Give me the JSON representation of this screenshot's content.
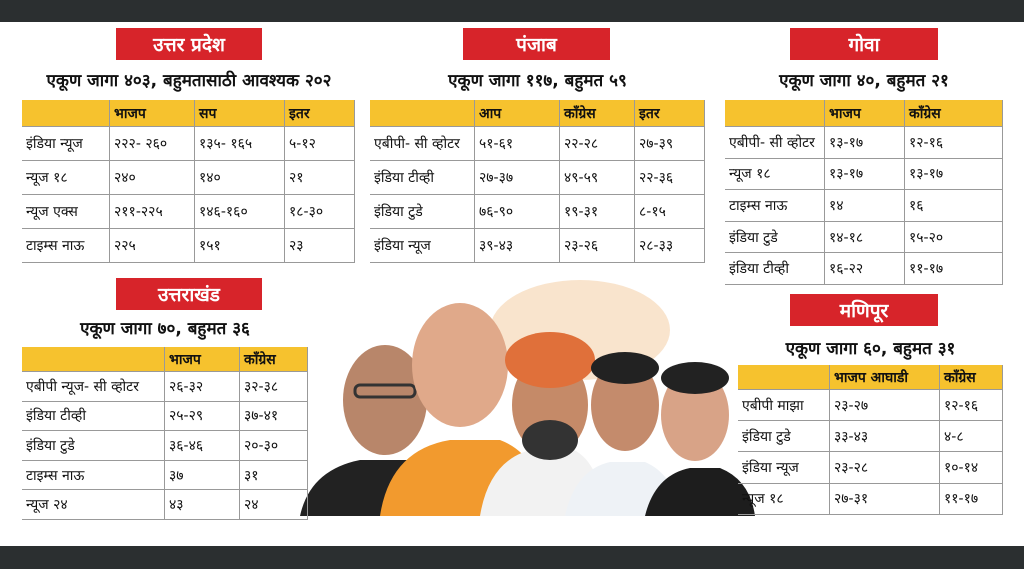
{
  "sections": [
    {
      "title": "उत्तर प्रदेश",
      "subtitle": "एकूण जागा ४०३, बहुमतासाठी आवश्यक २०२",
      "header": [
        "भाजप",
        "सप",
        "इतर"
      ],
      "rows": [
        [
          "इंडिया न्यूज",
          "२२२- २६०",
          "१३५- १६५",
          "५-१२"
        ],
        [
          "न्यूज १८",
          "२४०",
          "१४०",
          "२१"
        ],
        [
          "न्यूज एक्स",
          "२११-२२५",
          "१४६-१६०",
          "१८-३०"
        ],
        [
          "टाइम्स नाऊ",
          "२२५",
          "१५१",
          "२३"
        ]
      ]
    },
    {
      "title": "पंजाब",
      "subtitle": "एकूण जागा ११७, बहुमत ५९",
      "header": [
        "आप",
        "काँग्रेस",
        "इतर"
      ],
      "rows": [
        [
          "एबीपी- सी व्होटर",
          "५१-६१",
          "२२-२८",
          "२७-३९"
        ],
        [
          "इंडिया टीव्ही",
          "२७-३७",
          "४९-५९",
          "२२-३६"
        ],
        [
          "इंडिया टुडे",
          "७६-९०",
          "१९-३१",
          "८-१५"
        ],
        [
          "इंडिया न्यूज",
          "३९-४३",
          "२३-२६",
          "२८-३३"
        ]
      ]
    },
    {
      "title": "गोवा",
      "subtitle": "एकूण जागा ४०, बहुमत २१",
      "header": [
        "भाजप",
        "काँग्रेस"
      ],
      "rows": [
        [
          "एबीपी- सी व्होटर",
          "१३-१७",
          "१२-१६"
        ],
        [
          "न्यूज १८",
          "१३-१७",
          "१३-१७"
        ],
        [
          "टाइम्स नाऊ",
          "१४",
          "१६"
        ],
        [
          "इंडिया टुडे",
          "१४-१८",
          "१५-२०"
        ],
        [
          "इंडिया टीव्ही",
          "१६-२२",
          "११-१७"
        ]
      ]
    },
    {
      "title": "उत्तराखंड",
      "subtitle": "एकूण जागा ७०, बहुमत ३६",
      "header": [
        "भाजप",
        "काँग्रेस"
      ],
      "rows": [
        [
          "एबीपी न्यूज- सी व्होटर",
          "२६-३२",
          "३२-३८"
        ],
        [
          "इंडिया टीव्ही",
          "२५-२९",
          "३७-४१"
        ],
        [
          "इंडिया टुडे",
          "३६-४६",
          "२०-३०"
        ],
        [
          "टाइम्स नाऊ",
          "३७",
          "३१"
        ],
        [
          "न्यूज २४",
          "४३",
          "२४"
        ]
      ]
    },
    {
      "title": "मणिपूर",
      "subtitle": "एकूण जागा ६०, बहुमत ३१",
      "header": [
        "भाजप आघाडी",
        "काँग्रेस"
      ],
      "rows": [
        [
          "एबीपी माझा",
          "२३-२७",
          "१२-१६"
        ],
        [
          "इंडिया टुडे",
          "३३-४३",
          "४-८"
        ],
        [
          "इंडिया न्यूज",
          "२३-२८",
          "१०-१४"
        ],
        [
          "न्यूज १८",
          "२७-३१",
          "११-१७"
        ]
      ]
    }
  ]
}
